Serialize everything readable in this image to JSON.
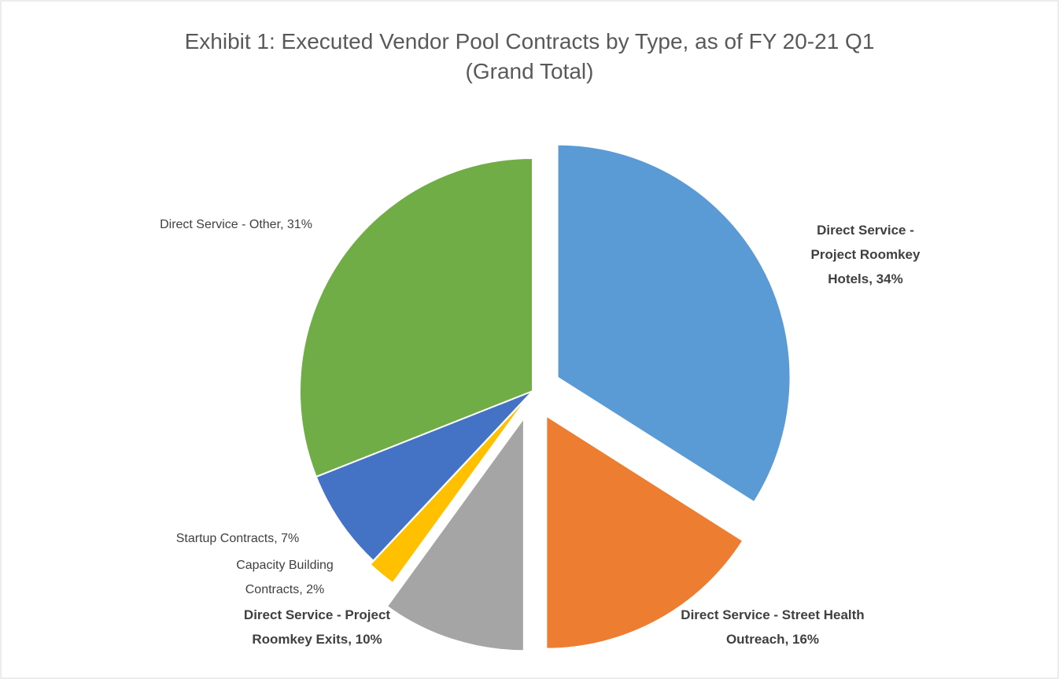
{
  "chart_data": {
    "type": "pie",
    "title": "Exhibit 1: Executed Vendor Pool Contracts by Type, as of FY 20-21 Q1 (Grand Total)",
    "values": [
      34,
      16,
      10,
      2,
      7,
      31
    ],
    "value_labels": [
      "Direct Service - Project Roomkey Hotels, 34%",
      "Direct Service - Street Health Outreach, 16%",
      "Direct Service - Project Roomkey Exits, 10%",
      "Capacity Building Contracts, 2%",
      "Startup Contracts, 7%",
      "Direct Service - Other, 31%"
    ],
    "colors": [
      "#5b9bd5",
      "#ed7d31",
      "#a5a5a5",
      "#ffc000",
      "#4472c4",
      "#70ad47"
    ]
  }
}
